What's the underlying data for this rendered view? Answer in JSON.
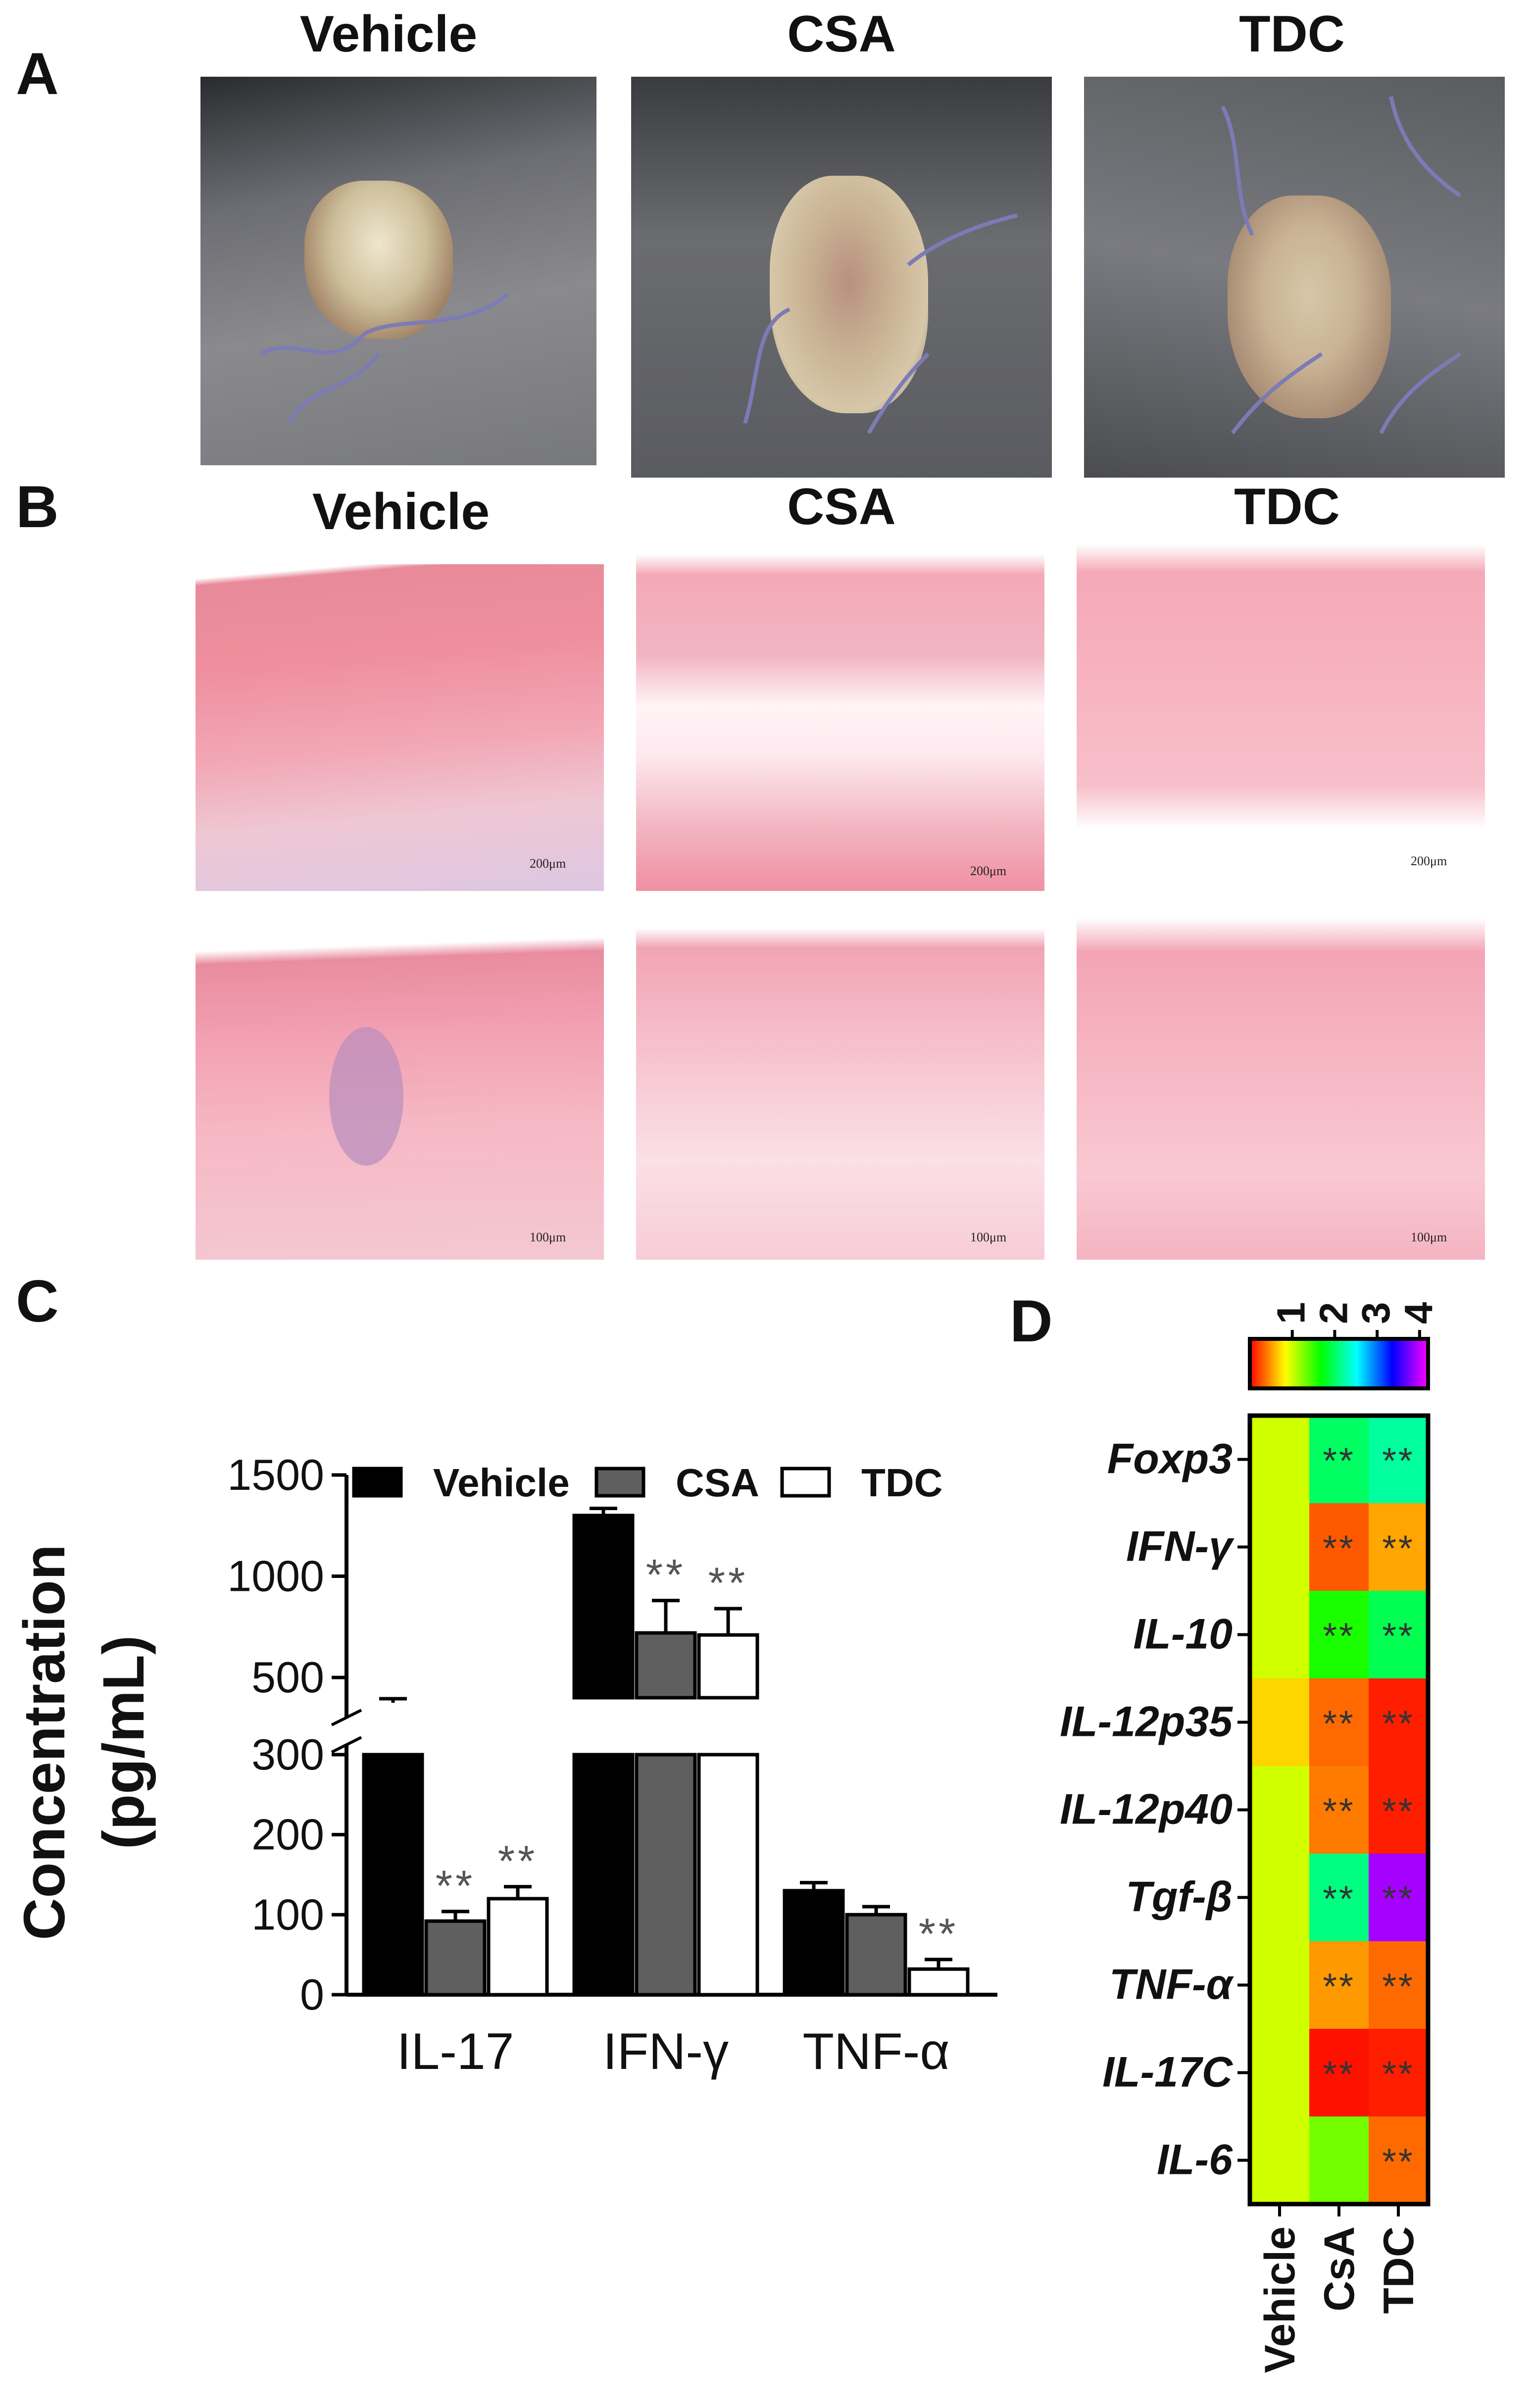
{
  "panels": {
    "A": {
      "letter": "A",
      "titles": [
        "Vehicle",
        "CSA",
        "TDC"
      ]
    },
    "B": {
      "letter": "B",
      "titles": [
        "Vehicle",
        "CSA",
        "TDC"
      ],
      "scale_top": [
        "200μm",
        "200μm",
        "200μm"
      ],
      "scale_bottom": [
        "100μm",
        "100μm",
        "100μm"
      ]
    },
    "C": {
      "letter": "C"
    },
    "D": {
      "letter": "D"
    }
  },
  "chart_data": [
    {
      "type": "bar",
      "panel": "C",
      "ylabel_line1": "Concentration",
      "ylabel_line2": "(pg/mL)",
      "categories": [
        "IL-17",
        "IFN-γ",
        "TNF-α"
      ],
      "series": [
        {
          "name": "Vehicle",
          "color": "#000000",
          "values": [
            375,
            1300,
            130
          ],
          "errors": [
            20,
            35,
            10
          ]
        },
        {
          "name": "CSA",
          "color": "#5f5f5f",
          "values": [
            92,
            720,
            100
          ],
          "errors": [
            12,
            160,
            10
          ]
        },
        {
          "name": "TDC",
          "color": "#ffffff",
          "values": [
            120,
            710,
            32
          ],
          "errors": [
            15,
            130,
            12
          ]
        }
      ],
      "significance": [
        [
          "",
          "**",
          "**"
        ],
        [
          "",
          "**",
          "**"
        ],
        [
          "",
          "",
          "**"
        ]
      ],
      "yticks": [
        0,
        100,
        200,
        300,
        500,
        1000,
        1500
      ],
      "ylim": [
        0,
        1500
      ],
      "axis_break": [
        300,
        400
      ]
    },
    {
      "type": "heatmap",
      "panel": "D",
      "rows": [
        "Foxp3",
        "IFN-γ",
        "IL-10",
        "IL-12p35",
        "IL-12p40",
        "Tgf-β",
        "TNF-α",
        "IL-17C",
        "IL-6"
      ],
      "columns": [
        "Vehicle",
        "CsA",
        "TDC"
      ],
      "values": [
        [
          1.0,
          2.0,
          2.2
        ],
        [
          1.0,
          0.3,
          0.55
        ],
        [
          1.0,
          1.6,
          1.95
        ],
        [
          0.7,
          0.35,
          0.1
        ],
        [
          1.0,
          0.4,
          0.1
        ],
        [
          1.0,
          2.1,
          3.9
        ],
        [
          1.0,
          0.5,
          0.35
        ],
        [
          1.0,
          0.05,
          0.1
        ],
        [
          1.0,
          1.3,
          0.35
        ]
      ],
      "significance": [
        [
          "",
          "**",
          "**"
        ],
        [
          "",
          "**",
          "**"
        ],
        [
          "",
          "**",
          "**"
        ],
        [
          "",
          "**",
          "**"
        ],
        [
          "",
          "**",
          "**"
        ],
        [
          "",
          "**",
          "**"
        ],
        [
          "",
          "**",
          "**"
        ],
        [
          "",
          "**",
          "**"
        ],
        [
          "",
          "",
          "**"
        ]
      ],
      "colorbar_ticks": [
        "1",
        "2",
        "3",
        "4"
      ],
      "colorbar_range": [
        0,
        4.2
      ]
    }
  ]
}
